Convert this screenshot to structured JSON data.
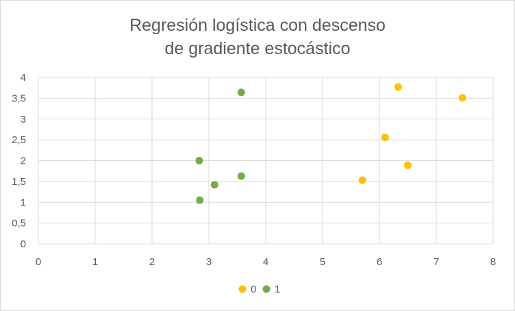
{
  "chart_data": {
    "type": "scatter",
    "title": "Regresión logística con descenso\nde gradiente estocástico",
    "xlabel": "",
    "ylabel": "",
    "xlim": [
      0,
      8
    ],
    "ylim": [
      0,
      4
    ],
    "x_ticks": [
      0,
      1,
      2,
      3,
      4,
      5,
      6,
      7,
      8
    ],
    "y_ticks": [
      0,
      0.5,
      1,
      1.5,
      2,
      2.5,
      3,
      3.5,
      4
    ],
    "x_tick_labels": [
      "0",
      "1",
      "2",
      "3",
      "4",
      "5",
      "6",
      "7",
      "8"
    ],
    "y_tick_labels": [
      "0",
      "0,5",
      "1",
      "1,5",
      "2",
      "2,5",
      "3",
      "3,5",
      "4"
    ],
    "grid": true,
    "legend_position": "bottom",
    "series": [
      {
        "name": "0",
        "color": "#ffc000",
        "points": [
          [
            6.33,
            3.77
          ],
          [
            7.46,
            3.51
          ],
          [
            6.1,
            2.56
          ],
          [
            6.5,
            1.89
          ],
          [
            5.7,
            1.53
          ]
        ]
      },
      {
        "name": "1",
        "color": "#70ad47",
        "points": [
          [
            3.57,
            3.64
          ],
          [
            2.83,
            2.0
          ],
          [
            3.57,
            1.63
          ],
          [
            3.1,
            1.42
          ],
          [
            2.84,
            1.05
          ]
        ]
      }
    ]
  }
}
